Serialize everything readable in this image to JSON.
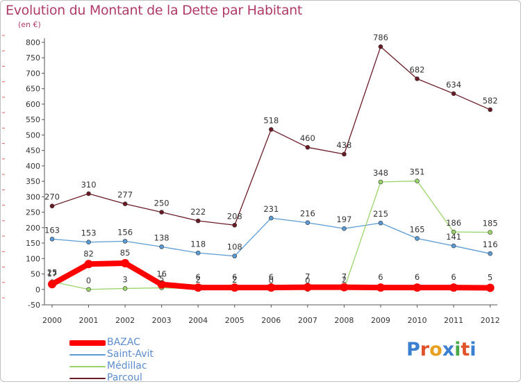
{
  "title": "Evolution du Montant de la Dette par Habitant",
  "subtitle": "(en €)",
  "logo": {
    "text": "Proxiti",
    "letters": [
      "P",
      "r",
      "o",
      "x",
      "i",
      "t",
      "i"
    ],
    "colors": [
      "#3a7fd0",
      "#e0522a",
      "#e8a020",
      "#3a7fd0",
      "#4aa84a",
      "#e0522a",
      "#3a7fd0"
    ]
  },
  "chart_data": {
    "type": "line",
    "title": "Evolution du Montant de la Dette par Habitant",
    "ylabel": "(en €)",
    "ylim": [
      -50,
      800
    ],
    "yticks": [
      -50,
      0,
      50,
      100,
      150,
      200,
      250,
      300,
      350,
      400,
      450,
      500,
      550,
      600,
      650,
      700,
      750,
      800
    ],
    "x": [
      "2000",
      "2001",
      "2002",
      "2003",
      "2004",
      "2005",
      "2006",
      "2007",
      "2008",
      "2009",
      "2010",
      "2011",
      "2012"
    ],
    "grid": false,
    "legend_position": "bottom-left",
    "series": [
      {
        "name": "BAZAC",
        "color": "#ff0000",
        "values": [
          17,
          82,
          85,
          16,
          6,
          6,
          6,
          7,
          7,
          6,
          6,
          6,
          5
        ]
      },
      {
        "name": "Saint-Avit",
        "color": "#5b9bd5",
        "values": [
          163,
          153,
          156,
          138,
          118,
          108,
          231,
          216,
          197,
          215,
          165,
          141,
          116
        ]
      },
      {
        "name": "Médillac",
        "color": "#9ad56a",
        "values": [
          25,
          0,
          3,
          5,
          2,
          2,
          0,
          0,
          2,
          348,
          351,
          186,
          185
        ]
      },
      {
        "name": "Parcoul",
        "color": "#6a1a24",
        "values": [
          270,
          310,
          277,
          250,
          222,
          208,
          518,
          460,
          438,
          786,
          682,
          634,
          582
        ]
      }
    ]
  }
}
